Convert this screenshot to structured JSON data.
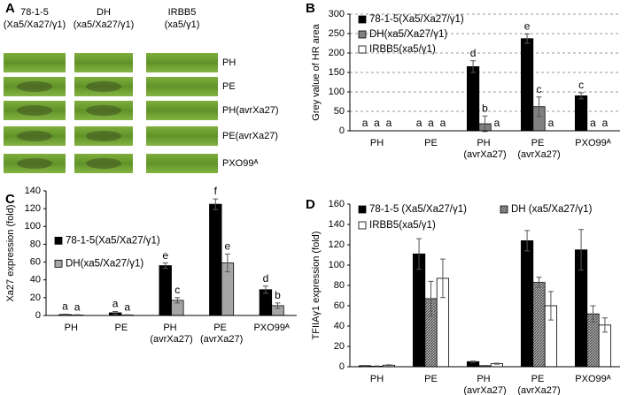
{
  "panel_a": {
    "label": "A",
    "columns": [
      [
        "78-1-5",
        "(Xa5/Xa27/γ1)"
      ],
      [
        "DH",
        "(xa5/Xa27/γ1)"
      ],
      [
        "IRBB5",
        "(xa5/γ1)"
      ]
    ],
    "rows": [
      "PH",
      "PE",
      "PH(avrXa27)",
      "PE(avrXa27)",
      "PXO99ᴬ"
    ]
  },
  "chart_data": [
    {
      "type": "bar",
      "label": "B",
      "y_label": "Grey value of HR area",
      "categories": [
        "PH",
        "PE",
        "PH (avrXa27)",
        "PE (avrXa27)",
        "PXO99ᴬ"
      ],
      "series": [
        {
          "name": "78-1-5(Xa5/Xa27/γ1)",
          "color": "#000000",
          "values": [
            0,
            0,
            165,
            237,
            90
          ],
          "errors": [
            0,
            0,
            15,
            12,
            8
          ],
          "letters": [
            "a",
            "a",
            "d",
            "e",
            "c"
          ]
        },
        {
          "name": "DH(xa5/Xa27/γ1)",
          "color": "#808080",
          "values": [
            0,
            0,
            18,
            62,
            0
          ],
          "errors": [
            0,
            0,
            20,
            25,
            0
          ],
          "letters": [
            "a",
            "a",
            "b",
            "c",
            "a"
          ]
        },
        {
          "name": "IRBB5(xa5/γ1)",
          "color": "#ffffff",
          "values": [
            0,
            0,
            0,
            0,
            0
          ],
          "errors": [
            0,
            0,
            0,
            0,
            0
          ],
          "letters": [
            "a",
            "a",
            "a",
            "a",
            "a"
          ]
        }
      ],
      "ylim": [
        0,
        300
      ],
      "yticks": [
        0,
        50,
        100,
        150,
        200,
        250,
        300
      ],
      "grid": true,
      "legend": "upper left",
      "legend_columns": 1
    },
    {
      "type": "bar",
      "label": "C",
      "y_label": "Xa27 expression (fold)",
      "categories": [
        "PH",
        "PE",
        "PH (avrXa27)",
        "PE (avrXa27)",
        "PXO99ᴬ"
      ],
      "series": [
        {
          "name": "78-1-5(Xa5/Xa27/γ1)",
          "color": "#000000",
          "values": [
            1,
            3,
            56,
            125,
            29
          ],
          "errors": [
            0.5,
            1.5,
            3,
            6,
            4
          ],
          "letters": [
            "a",
            "a",
            "e",
            "f",
            "d"
          ]
        },
        {
          "name": "DH(xa5/Xa27/γ1)",
          "color": "#a6a6a6",
          "values": [
            0.5,
            0.5,
            17,
            59,
            11
          ],
          "errors": [
            0.3,
            0.3,
            3,
            10,
            3
          ],
          "letters": [
            "a",
            "a",
            "c",
            "e",
            "b"
          ]
        }
      ],
      "ylim": [
        0,
        140
      ],
      "yticks": [
        0,
        20,
        40,
        60,
        80,
        100,
        120,
        140
      ],
      "grid": false,
      "legend": "center left",
      "legend_columns": 1
    },
    {
      "type": "bar",
      "label": "D",
      "y_label": "TFIIAγ1 expression (fold)",
      "categories": [
        "PH",
        "PE",
        "PH (avrXa27)",
        "PE (avrXa27)",
        "PXO99ᴬ"
      ],
      "series": [
        {
          "name": "78-1-5 (Xa5/Xa27/γ1)",
          "color": "#000000",
          "values": [
            1,
            111,
            5,
            124,
            115
          ],
          "errors": [
            0.3,
            15,
            0.5,
            10,
            20
          ]
        },
        {
          "name": "DH (xa5/Xa27/γ1)",
          "color": "#8c8c8c",
          "hatch": true,
          "values": [
            0.5,
            67,
            1,
            83,
            52
          ],
          "errors": [
            0.3,
            17,
            0.3,
            5,
            8
          ]
        },
        {
          "name": "IRBB5(xa5/γ1)",
          "color": "#ffffff",
          "values": [
            1.5,
            87,
            3,
            60,
            41
          ],
          "errors": [
            0.3,
            19,
            0.5,
            14,
            7
          ]
        }
      ],
      "ylim": [
        0,
        160
      ],
      "yticks": [
        0,
        20,
        40,
        60,
        80,
        100,
        120,
        140,
        160
      ],
      "grid": false,
      "legend": "upper left",
      "legend_columns": 2
    }
  ]
}
